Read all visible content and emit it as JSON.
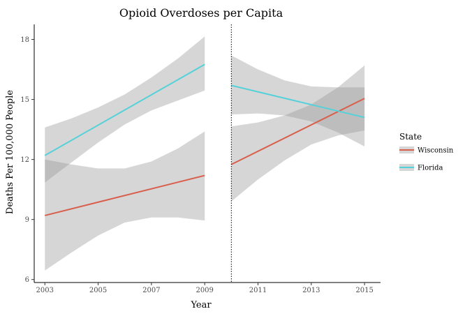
{
  "chart_data": {
    "type": "line",
    "title": "Opioid Overdoses per Capita",
    "xlabel": "Year",
    "ylabel": "Deaths Per 100,000 People",
    "xlim": [
      2002.6,
      2015.6
    ],
    "ylim": [
      5.85,
      18.75
    ],
    "x_ticks": [
      2003,
      2005,
      2007,
      2009,
      2011,
      2013,
      2015
    ],
    "y_ticks": [
      6,
      9,
      12,
      15,
      18
    ],
    "vline": {
      "x": 2010,
      "style": "dotted"
    },
    "grid": false,
    "legend": {
      "title": "State",
      "position": "right"
    },
    "series": [
      {
        "name": "Wisconsin",
        "color": "#d95f4d",
        "segments": [
          {
            "x": [
              2003,
              2009
            ],
            "y": [
              9.2,
              11.2
            ],
            "band_x": [
              2003,
              2004,
              2005,
              2006,
              2007,
              2008,
              2009
            ],
            "band_upper": [
              12.0,
              11.75,
              11.55,
              11.55,
              11.9,
              12.55,
              13.4
            ],
            "band_lower": [
              6.45,
              7.35,
              8.2,
              8.85,
              9.1,
              9.1,
              8.95
            ]
          },
          {
            "x": [
              2010,
              2015
            ],
            "y": [
              11.75,
              15.05
            ],
            "band_x": [
              2010,
              2011,
              2012,
              2013,
              2014,
              2015
            ],
            "band_upper": [
              13.65,
              13.85,
              14.2,
              14.75,
              15.6,
              16.7
            ],
            "band_lower": [
              9.9,
              11.0,
              11.95,
              12.75,
              13.2,
              13.45
            ]
          }
        ]
      },
      {
        "name": "Florida",
        "color": "#55d1d9",
        "segments": [
          {
            "x": [
              2003,
              2009
            ],
            "y": [
              12.2,
              16.75
            ],
            "band_x": [
              2003,
              2004,
              2005,
              2006,
              2007,
              2008,
              2009
            ],
            "band_upper": [
              13.6,
              14.05,
              14.6,
              15.25,
              16.1,
              17.05,
              18.15
            ],
            "band_lower": [
              10.85,
              11.85,
              12.85,
              13.75,
              14.45,
              14.95,
              15.45
            ]
          },
          {
            "x": [
              2010,
              2015
            ],
            "y": [
              15.7,
              14.1
            ],
            "band_x": [
              2010,
              2011,
              2012,
              2013,
              2014,
              2015
            ],
            "band_upper": [
              17.2,
              16.5,
              15.95,
              15.65,
              15.6,
              15.6
            ],
            "band_lower": [
              14.25,
              14.3,
              14.2,
              13.9,
              13.35,
              12.65
            ]
          }
        ]
      }
    ]
  }
}
